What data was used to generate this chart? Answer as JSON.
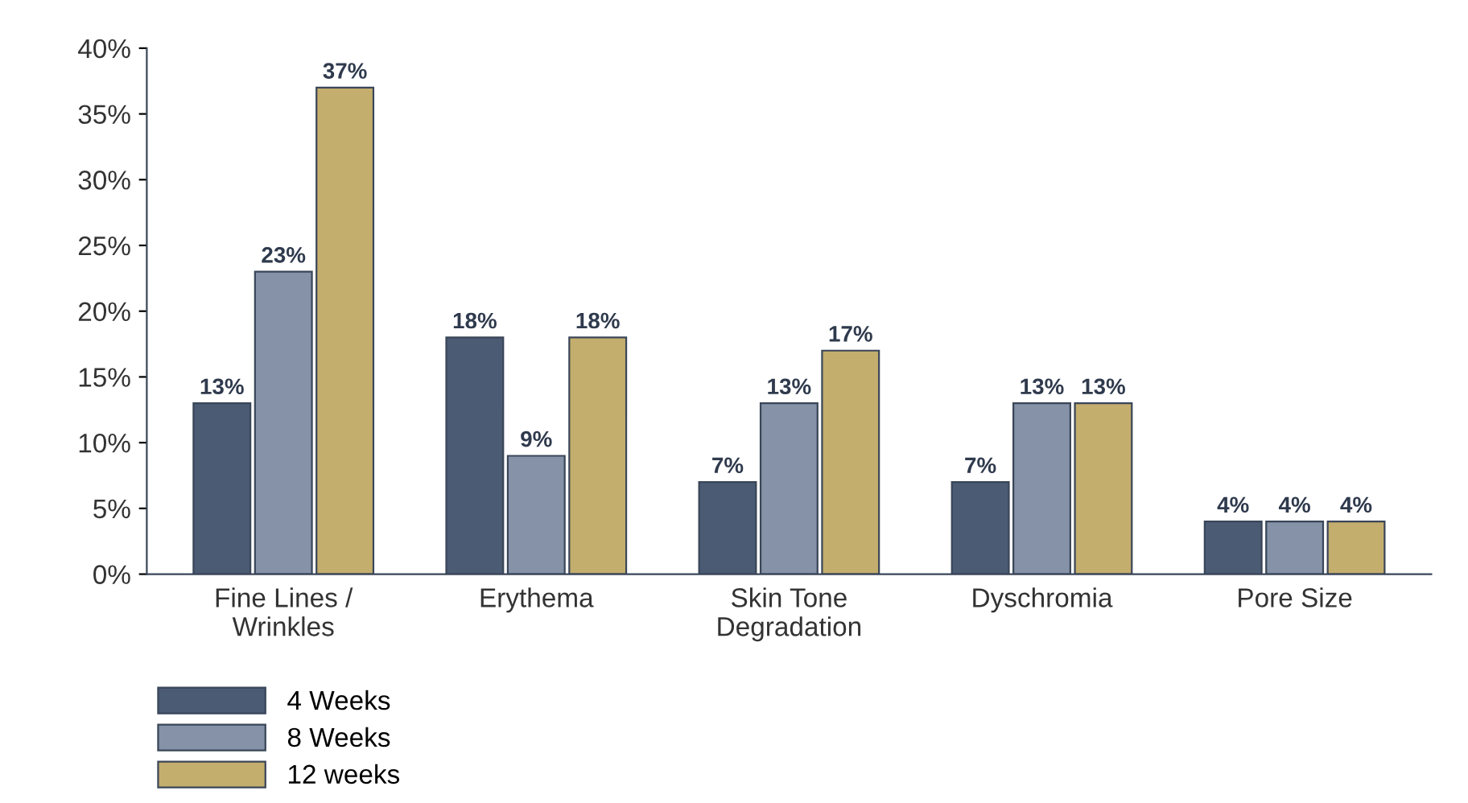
{
  "chart_data": {
    "type": "bar",
    "categories": [
      "Fine Lines /\nWrinkles",
      "Erythema",
      "Skin Tone\nDegradation",
      "Dyschromia",
      "Pore Size"
    ],
    "series": [
      {
        "name": "4 Weeks",
        "color": "#4b5b74",
        "values": [
          13,
          18,
          7,
          7,
          4
        ],
        "value_labels": [
          "13%",
          "18%",
          "7%",
          "7%",
          "4%"
        ]
      },
      {
        "name": "8 Weeks",
        "color": "#8592a7",
        "values": [
          23,
          9,
          13,
          13,
          4
        ],
        "value_labels": [
          "23%",
          "9%",
          "13%",
          "13%",
          "4%"
        ]
      },
      {
        "name": "12 weeks",
        "color": "#c4ae6e",
        "values": [
          37,
          18,
          17,
          13,
          4
        ],
        "value_labels": [
          "37%",
          "18%",
          "17%",
          "13%",
          "4%"
        ]
      }
    ],
    "ylim": [
      0,
      40
    ],
    "yticks": [
      {
        "value": 0,
        "label": "0%"
      },
      {
        "value": 5,
        "label": "5%"
      },
      {
        "value": 10,
        "label": "10%"
      },
      {
        "value": 15,
        "label": "15%"
      },
      {
        "value": 20,
        "label": "20%"
      },
      {
        "value": 25,
        "label": "25%"
      },
      {
        "value": 30,
        "label": "30%"
      },
      {
        "value": 35,
        "label": "35%"
      },
      {
        "value": 40,
        "label": "40%"
      }
    ],
    "grid": false,
    "legend": "bottom left"
  }
}
